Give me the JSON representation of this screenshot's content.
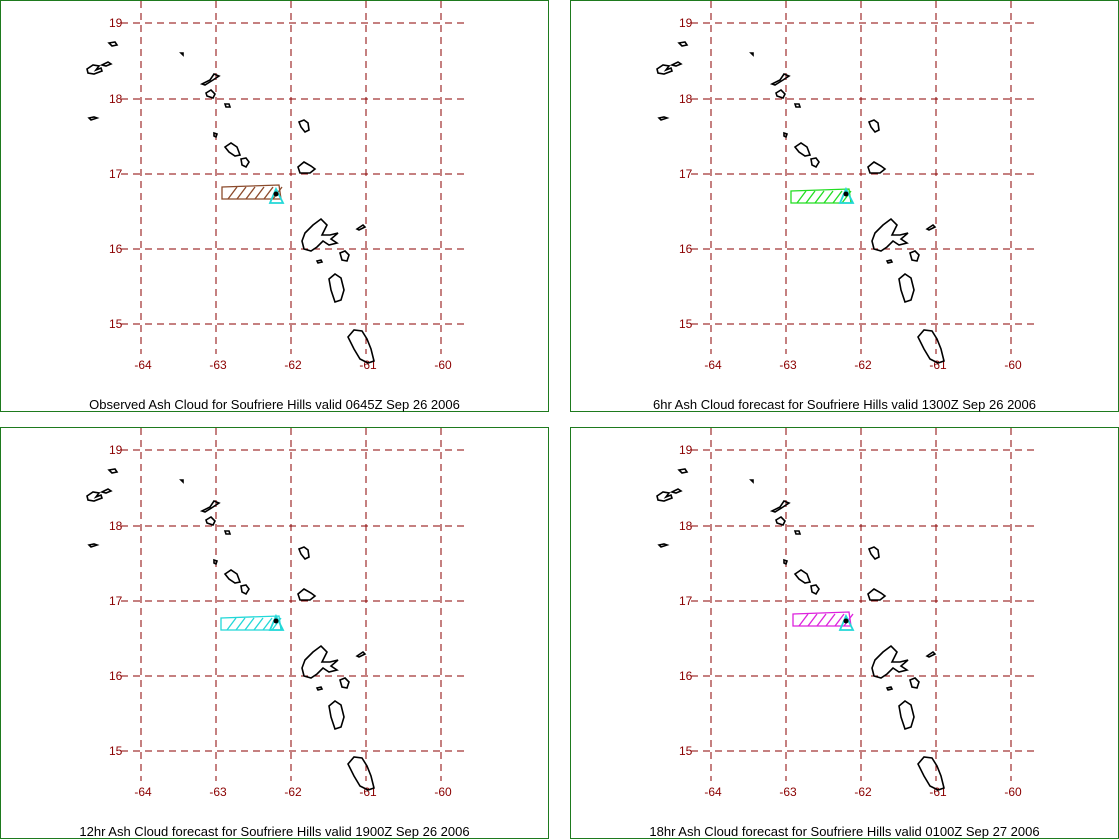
{
  "panels": [
    {
      "caption": "Observed Ash Cloud for Soufriere  Hills valid 0645Z Sep 26 2006",
      "cloud_color": "#8b4a2b"
    },
    {
      "caption": "6hr Ash Cloud forecast for Soufriere  Hills valid 1300Z Sep 26 2006",
      "cloud_color": "#22dd22"
    },
    {
      "caption": "12hr Ash Cloud forecast for Soufriere  Hills valid 1900Z Sep 26 2006",
      "cloud_color": "#22d8d8"
    },
    {
      "caption": "18hr Ash Cloud forecast for Soufriere  Hills valid 0100Z Sep 27 2006",
      "cloud_color": "#dd22dd"
    }
  ],
  "axes": {
    "latitudes": [
      "19",
      "18",
      "17",
      "16",
      "15"
    ],
    "longitudes": [
      "-64",
      "-63",
      "-62",
      "-61",
      "-60"
    ]
  },
  "colors": {
    "grid": "#8b0000",
    "frame": "#1e7a1e",
    "coastline": "#000000",
    "volcano_marker": "#22d8d8"
  },
  "map": {
    "volcano_marker_icon": "triangle-icon"
  }
}
